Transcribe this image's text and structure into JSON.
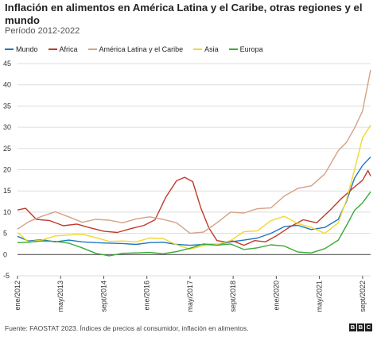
{
  "header": {
    "title": "Inflación en alimentos en América Latina y el Caribe, otras regiones y el mundo",
    "subtitle": "Período 2012-2022"
  },
  "footer": {
    "source": "Fuente: FAOSTAT 2023. Índices de precios al consumidor, inflación en alimentos.",
    "logo_letters": [
      "B",
      "B",
      "C"
    ]
  },
  "chart_data": {
    "type": "line",
    "title": "Inflación en alimentos en América Latina y el Caribe, otras regiones y el mundo",
    "subtitle": "Período 2012-2022",
    "xlabel": "",
    "ylabel": "",
    "ylim": [
      -5,
      45
    ],
    "yticks": [
      -5,
      0,
      5,
      10,
      15,
      20,
      25,
      30,
      35,
      40,
      45
    ],
    "xlim": [
      "2012-01",
      "2022-12"
    ],
    "xticks": [
      {
        "label": "ene/2012",
        "date": "2012-01"
      },
      {
        "label": "may/2013",
        "date": "2013-05"
      },
      {
        "label": "sept/2014",
        "date": "2014-09"
      },
      {
        "label": "ene/2016",
        "date": "2016-01"
      },
      {
        "label": "may/2017",
        "date": "2017-05"
      },
      {
        "label": "sept/2018",
        "date": "2018-09"
      },
      {
        "label": "ene/2020",
        "date": "2020-01"
      },
      {
        "label": "may/2021",
        "date": "2021-05"
      },
      {
        "label": "sept/2022",
        "date": "2022-09"
      }
    ],
    "grid": "horizontal",
    "legend_position": "top-left",
    "series": [
      {
        "name": "Mundo",
        "color": "#1f78c1",
        "points": [
          [
            "2012-01",
            4.3
          ],
          [
            "2012-05",
            3.2
          ],
          [
            "2012-10",
            3.5
          ],
          [
            "2013-03",
            3.0
          ],
          [
            "2013-08",
            3.4
          ],
          [
            "2014-01",
            3.0
          ],
          [
            "2014-06",
            2.8
          ],
          [
            "2014-11",
            2.7
          ],
          [
            "2015-04",
            2.6
          ],
          [
            "2015-09",
            2.4
          ],
          [
            "2016-02",
            2.8
          ],
          [
            "2016-07",
            2.9
          ],
          [
            "2016-12",
            2.4
          ],
          [
            "2017-05",
            2.2
          ],
          [
            "2017-10",
            2.4
          ],
          [
            "2018-03",
            2.4
          ],
          [
            "2018-08",
            3.0
          ],
          [
            "2019-01",
            3.4
          ],
          [
            "2019-06",
            3.9
          ],
          [
            "2019-11",
            5.0
          ],
          [
            "2020-04",
            6.6
          ],
          [
            "2020-09",
            6.9
          ],
          [
            "2021-02",
            5.9
          ],
          [
            "2021-07",
            6.4
          ],
          [
            "2021-12",
            8.3
          ],
          [
            "2022-03",
            12.5
          ],
          [
            "2022-06",
            18.0
          ],
          [
            "2022-09",
            21.0
          ],
          [
            "2022-12",
            23.0
          ]
        ]
      },
      {
        "name": "Africa",
        "color": "#c0392b",
        "points": [
          [
            "2012-01",
            10.5
          ],
          [
            "2012-04",
            10.9
          ],
          [
            "2012-08",
            8.3
          ],
          [
            "2013-01",
            8.0
          ],
          [
            "2013-06",
            6.8
          ],
          [
            "2013-11",
            7.2
          ],
          [
            "2014-04",
            6.3
          ],
          [
            "2014-09",
            5.5
          ],
          [
            "2015-02",
            5.2
          ],
          [
            "2015-07",
            6.1
          ],
          [
            "2015-12",
            6.9
          ],
          [
            "2016-04",
            8.2
          ],
          [
            "2016-08",
            13.5
          ],
          [
            "2016-12",
            17.4
          ],
          [
            "2017-03",
            18.2
          ],
          [
            "2017-06",
            17.2
          ],
          [
            "2017-09",
            11.0
          ],
          [
            "2017-12",
            6.3
          ],
          [
            "2018-03",
            3.3
          ],
          [
            "2018-06",
            3.0
          ],
          [
            "2018-09",
            3.2
          ],
          [
            "2019-01",
            2.2
          ],
          [
            "2019-05",
            3.3
          ],
          [
            "2019-09",
            3.0
          ],
          [
            "2020-01",
            4.4
          ],
          [
            "2020-06",
            6.5
          ],
          [
            "2020-11",
            8.2
          ],
          [
            "2021-04",
            7.5
          ],
          [
            "2021-09",
            10.5
          ],
          [
            "2022-01",
            13.1
          ],
          [
            "2022-05",
            15.4
          ],
          [
            "2022-09",
            17.5
          ],
          [
            "2022-11",
            19.8
          ],
          [
            "2022-12",
            18.5
          ]
        ]
      },
      {
        "name": "América Latina y el Caribe",
        "color": "#d4a284",
        "points": [
          [
            "2012-01",
            6.0
          ],
          [
            "2012-05",
            7.7
          ],
          [
            "2012-10",
            9.0
          ],
          [
            "2013-03",
            10.1
          ],
          [
            "2013-08",
            8.9
          ],
          [
            "2014-01",
            7.6
          ],
          [
            "2014-06",
            8.3
          ],
          [
            "2014-11",
            8.1
          ],
          [
            "2015-04",
            7.5
          ],
          [
            "2015-09",
            8.4
          ],
          [
            "2016-02",
            8.9
          ],
          [
            "2016-07",
            8.3
          ],
          [
            "2016-12",
            7.5
          ],
          [
            "2017-05",
            5.0
          ],
          [
            "2017-10",
            5.3
          ],
          [
            "2018-03",
            7.5
          ],
          [
            "2018-08",
            10.0
          ],
          [
            "2019-01",
            9.8
          ],
          [
            "2019-06",
            10.8
          ],
          [
            "2019-11",
            11.0
          ],
          [
            "2020-04",
            13.8
          ],
          [
            "2020-09",
            15.6
          ],
          [
            "2021-02",
            16.2
          ],
          [
            "2021-07",
            19.0
          ],
          [
            "2021-12",
            24.5
          ],
          [
            "2022-03",
            26.4
          ],
          [
            "2022-06",
            29.8
          ],
          [
            "2022-09",
            33.8
          ],
          [
            "2022-12",
            43.5
          ]
        ]
      },
      {
        "name": "Asia",
        "color": "#f2d82e",
        "points": [
          [
            "2012-01",
            5.2
          ],
          [
            "2012-05",
            3.0
          ],
          [
            "2012-10",
            3.4
          ],
          [
            "2013-03",
            4.4
          ],
          [
            "2013-08",
            4.6
          ],
          [
            "2014-01",
            4.8
          ],
          [
            "2014-06",
            4.0
          ],
          [
            "2014-11",
            3.1
          ],
          [
            "2015-04",
            3.2
          ],
          [
            "2015-09",
            3.0
          ],
          [
            "2016-02",
            3.9
          ],
          [
            "2016-07",
            3.8
          ],
          [
            "2016-12",
            2.3
          ],
          [
            "2017-05",
            1.3
          ],
          [
            "2017-10",
            2.1
          ],
          [
            "2018-03",
            2.4
          ],
          [
            "2018-08",
            3.3
          ],
          [
            "2019-01",
            5.4
          ],
          [
            "2019-06",
            5.6
          ],
          [
            "2019-11",
            8.0
          ],
          [
            "2020-04",
            9.0
          ],
          [
            "2020-09",
            7.3
          ],
          [
            "2021-02",
            6.4
          ],
          [
            "2021-07",
            5.0
          ],
          [
            "2021-12",
            7.5
          ],
          [
            "2022-03",
            12.8
          ],
          [
            "2022-06",
            20.0
          ],
          [
            "2022-09",
            27.5
          ],
          [
            "2022-12",
            30.5
          ]
        ]
      },
      {
        "name": "Europa",
        "color": "#3aaa35",
        "points": [
          [
            "2012-01",
            2.8
          ],
          [
            "2012-05",
            2.9
          ],
          [
            "2012-10",
            3.2
          ],
          [
            "2013-03",
            3.1
          ],
          [
            "2013-08",
            2.7
          ],
          [
            "2014-01",
            1.6
          ],
          [
            "2014-06",
            0.3
          ],
          [
            "2014-11",
            -0.3
          ],
          [
            "2015-04",
            0.3
          ],
          [
            "2015-09",
            0.4
          ],
          [
            "2016-02",
            0.5
          ],
          [
            "2016-07",
            0.2
          ],
          [
            "2016-12",
            0.7
          ],
          [
            "2017-05",
            1.5
          ],
          [
            "2017-10",
            2.5
          ],
          [
            "2018-03",
            2.2
          ],
          [
            "2018-08",
            2.5
          ],
          [
            "2019-01",
            1.2
          ],
          [
            "2019-06",
            1.6
          ],
          [
            "2019-11",
            2.3
          ],
          [
            "2020-04",
            2.0
          ],
          [
            "2020-09",
            0.6
          ],
          [
            "2021-02",
            0.4
          ],
          [
            "2021-07",
            1.4
          ],
          [
            "2021-12",
            3.4
          ],
          [
            "2022-03",
            6.8
          ],
          [
            "2022-06",
            10.4
          ],
          [
            "2022-09",
            12.2
          ],
          [
            "2022-12",
            14.8
          ]
        ]
      }
    ]
  }
}
